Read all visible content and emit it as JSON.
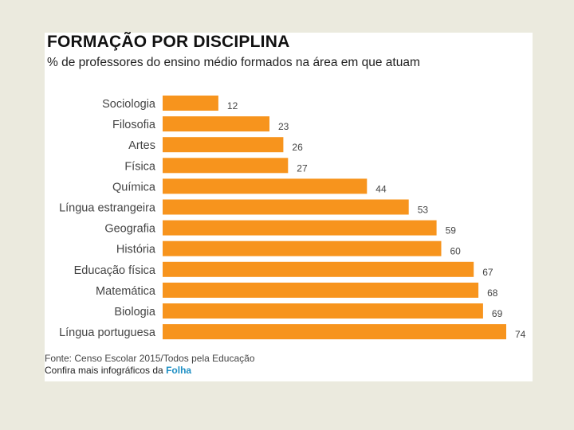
{
  "chart_data": {
    "type": "bar",
    "orientation": "horizontal",
    "title": "FORMAÇÃO POR DISCIPLINA",
    "subtitle": "% de professores do ensino médio formados na área em que atuam",
    "categories": [
      "Sociologia",
      "Filosofia",
      "Artes",
      "Física",
      "Química",
      "Língua estrangeira",
      "Geografia",
      "História",
      "Educação física",
      "Matemática",
      "Biologia",
      "Língua portuguesa"
    ],
    "values": [
      12,
      23,
      26,
      27,
      44,
      53,
      59,
      60,
      67,
      68,
      69,
      74
    ],
    "xlim": [
      0,
      74
    ],
    "bar_color": "#f7941d",
    "xlabel": "",
    "ylabel": ""
  },
  "footer": {
    "source": "Fonte: Censo Escolar 2015/Todos pela Educação",
    "more_prefix": "Confira mais infográficos da ",
    "brand": "Folha",
    "brand_color": "#1e8fc4"
  }
}
